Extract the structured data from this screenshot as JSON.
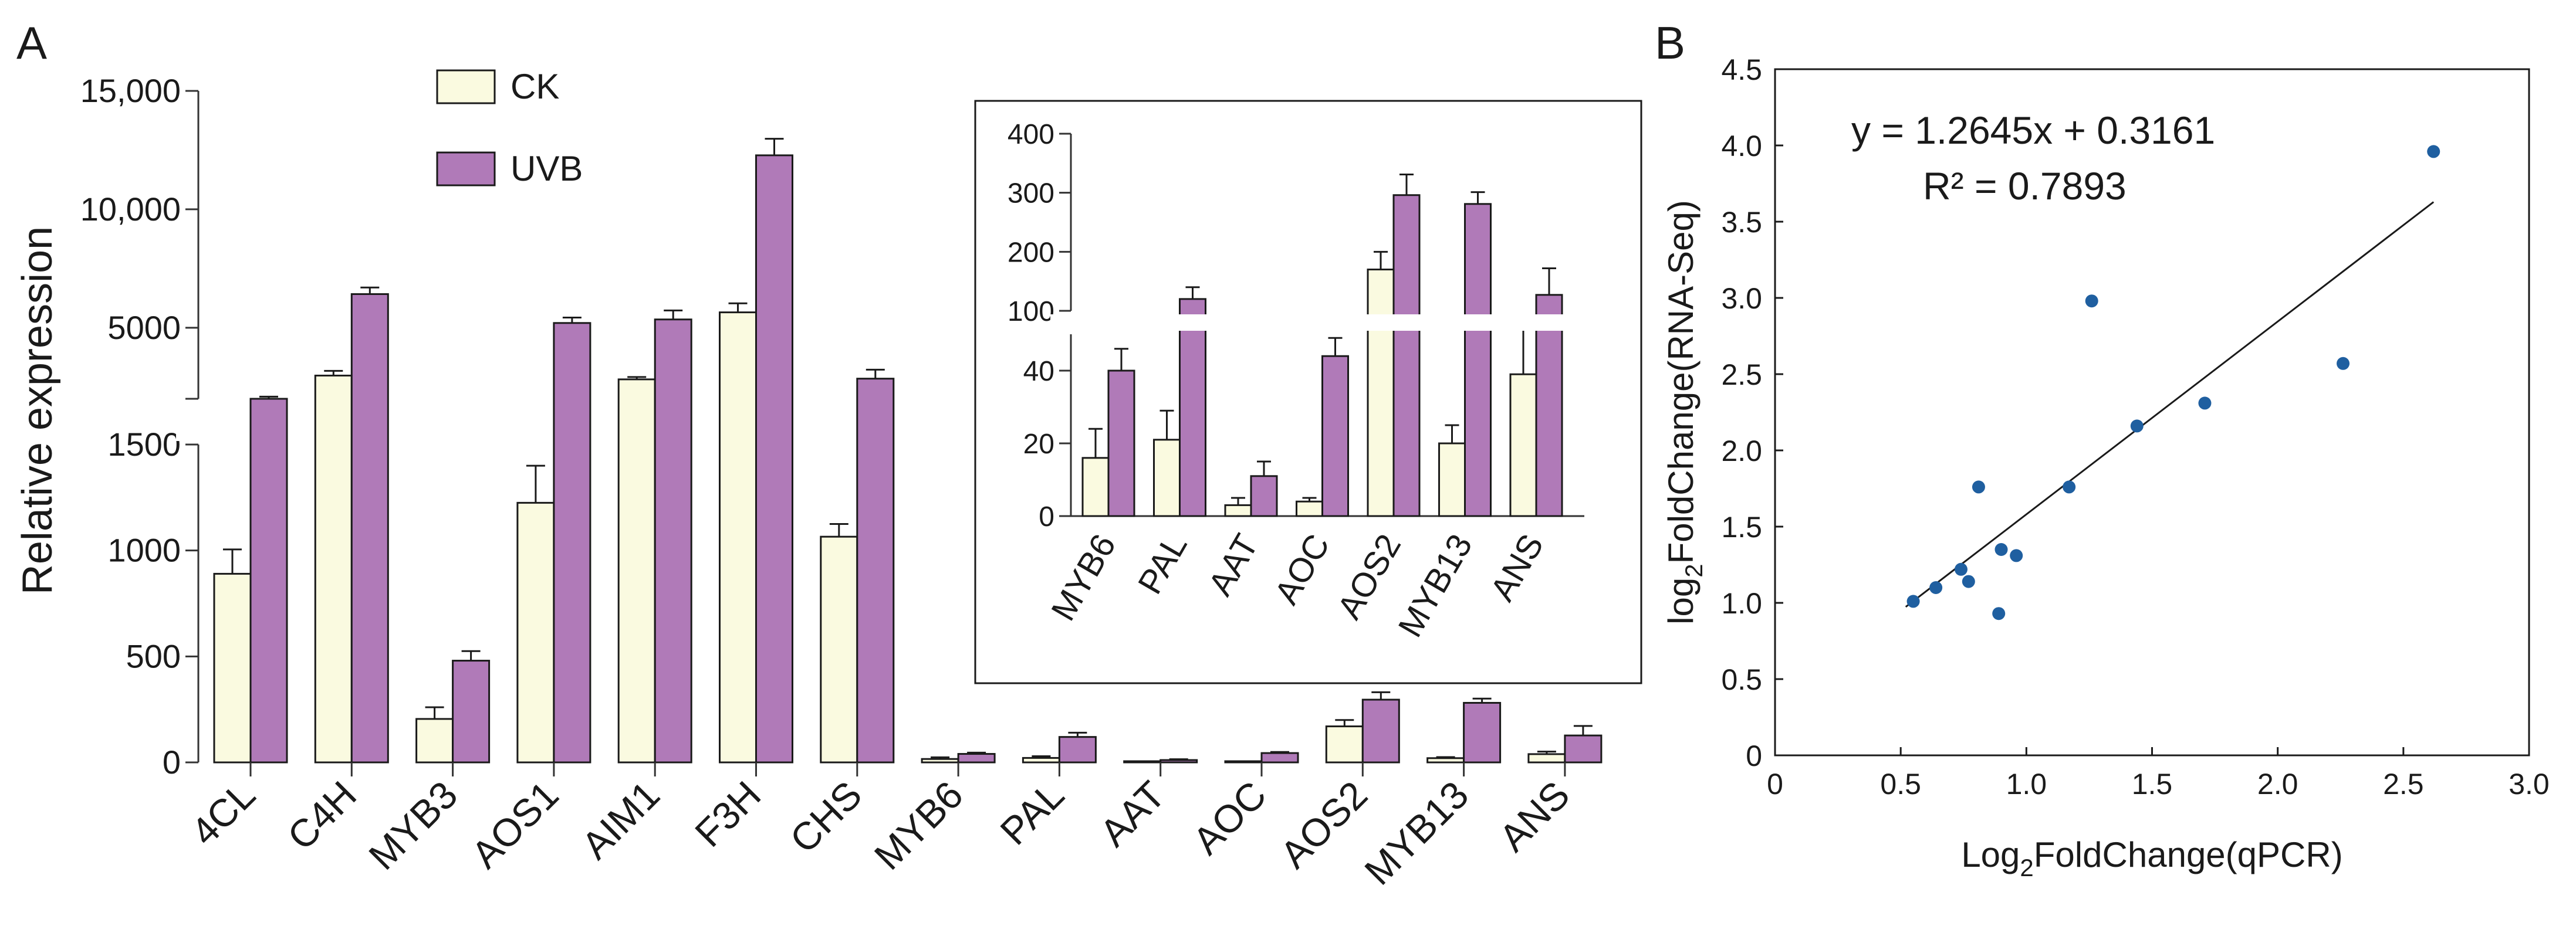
{
  "panels": {
    "a_label": "A",
    "b_label": "B"
  },
  "chart_data": [
    {
      "type": "bar",
      "panel": "A",
      "ylabel": "Relative expression",
      "categories": [
        "4CL",
        "C4H",
        "MYB3",
        "AOS1",
        "AIM1",
        "F3H",
        "CHS",
        "MYB6",
        "PAL",
        "AAT",
        "AOC",
        "AOS2",
        "MYB13",
        "ANS"
      ],
      "series": [
        {
          "name": "CK",
          "color": "#fafae0",
          "values": [
            890,
            2980,
            205,
            1225,
            2820,
            5650,
            1065,
            16,
            21,
            3,
            4,
            170,
            20,
            39
          ],
          "errors": [
            115,
            200,
            55,
            175,
            100,
            380,
            60,
            8,
            8,
            2,
            1,
            30,
            5,
            12
          ]
        },
        {
          "name": "UVB",
          "color": "#b07ab8",
          "values": [
            2000,
            6420,
            480,
            5200,
            5350,
            12280,
            2850,
            40,
            120,
            11,
            44,
            296,
            281,
            127
          ],
          "errors": [
            90,
            280,
            45,
            230,
            380,
            700,
            380,
            6,
            20,
            4,
            5,
            35,
            20,
            45
          ]
        }
      ],
      "y_axis_segments": [
        {
          "range": [
            0,
            1500
          ],
          "ticks": [
            0,
            500,
            1000,
            1500
          ],
          "tick_labels": [
            "0",
            "500",
            "1000",
            "1500"
          ]
        },
        {
          "range": [
            2000,
            15000
          ],
          "ticks": [
            2000,
            5000,
            10000,
            15000
          ],
          "tick_labels": [
            "",
            "5000",
            "10,000",
            "15,000"
          ]
        }
      ],
      "legend": "top-center",
      "inset": {
        "categories": [
          "MYB6",
          "PAL",
          "AAT",
          "AOC",
          "AOS2",
          "MYB13",
          "ANS"
        ],
        "y_axis_segments": [
          {
            "range": [
              0,
              50
            ],
            "ticks": [
              0,
              20,
              40
            ],
            "tick_labels": [
              "0",
              "20",
              "40"
            ]
          },
          {
            "range": [
              100,
              400
            ],
            "ticks": [
              100,
              200,
              300,
              400
            ],
            "tick_labels": [
              "100",
              "200",
              "300",
              "400"
            ]
          }
        ]
      }
    },
    {
      "type": "scatter",
      "panel": "B",
      "xlabel_main": "Log",
      "xlabel_sub": "2",
      "xlabel_rest": "FoldChange(qPCR)",
      "ylabel_main": "log",
      "ylabel_sub": "2",
      "ylabel_rest": "FoldChange(RNA-Seq)",
      "xlim": [
        0,
        3.0
      ],
      "ylim": [
        0,
        4.5
      ],
      "x_ticks": [
        "0",
        "0.5",
        "1.0",
        "1.5",
        "2.0",
        "2.5",
        "3.0"
      ],
      "y_ticks": [
        "0",
        "0.5",
        "1.0",
        "1.5",
        "2.0",
        "2.5",
        "3.0",
        "3.5",
        "4.0",
        "4.5"
      ],
      "points": [
        {
          "x": 0.55,
          "y": 1.01
        },
        {
          "x": 0.64,
          "y": 1.1
        },
        {
          "x": 0.74,
          "y": 1.22
        },
        {
          "x": 0.77,
          "y": 1.14
        },
        {
          "x": 0.81,
          "y": 1.76
        },
        {
          "x": 0.89,
          "y": 0.93
        },
        {
          "x": 0.9,
          "y": 1.35
        },
        {
          "x": 0.96,
          "y": 1.31
        },
        {
          "x": 1.17,
          "y": 1.76
        },
        {
          "x": 1.26,
          "y": 2.98
        },
        {
          "x": 1.44,
          "y": 2.16
        },
        {
          "x": 1.71,
          "y": 2.31
        },
        {
          "x": 2.26,
          "y": 2.57
        },
        {
          "x": 2.62,
          "y": 3.96
        }
      ],
      "point_color": "#1f5fa0",
      "fit_line": {
        "slope": 1.2645,
        "intercept": 0.3161,
        "x_range": [
          0.52,
          2.62
        ]
      },
      "equation": "y = 1.2645x + 0.3161",
      "r_squared": "R² = 0.7893"
    }
  ]
}
